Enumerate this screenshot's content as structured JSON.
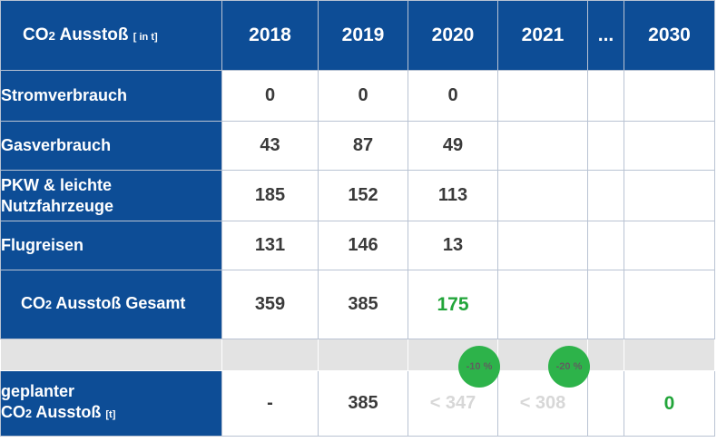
{
  "chart_data": {
    "type": "table",
    "header": {
      "label_main": "CO",
      "label_sub": "2",
      "label_rest": " Ausstoß",
      "unit": "[ in t]",
      "years": [
        "2018",
        "2019",
        "2020",
        "2021",
        "...",
        "2030"
      ]
    },
    "rows": [
      {
        "label": "Stromverbrauch",
        "values": [
          "0",
          "0",
          "0",
          "",
          "",
          ""
        ]
      },
      {
        "label": "Gasverbrauch",
        "values": [
          "43",
          "87",
          "49",
          "",
          "",
          ""
        ]
      },
      {
        "label": "PKW & leichte Nutzfahrzeuge",
        "values": [
          "185",
          "152",
          "113",
          "",
          "",
          ""
        ]
      },
      {
        "label": "Flugreisen",
        "values": [
          "131",
          "146",
          "13",
          "",
          "",
          ""
        ]
      }
    ],
    "total": {
      "label_main": "CO",
      "label_sub": "2",
      "label_rest": " Ausstoß Gesamt",
      "values": [
        "359",
        "385",
        "175",
        "",
        "",
        ""
      ]
    },
    "planned": {
      "label_line1": "geplanter",
      "label_main": "CO",
      "label_sub": "2",
      "label_rest": " Ausstoß",
      "unit": "[t]",
      "values": [
        "-",
        "385",
        "< 347",
        "< 308",
        "",
        "0"
      ]
    },
    "reduction_badges": [
      "-10 %",
      "-20 %"
    ],
    "colors": {
      "header_bg": "#0d4d96",
      "header_text": "#ffffff",
      "value_text": "#3a3a3a",
      "highlight": "#22a53a",
      "muted_text": "#d7d7d7",
      "separator": "#e3e3e3"
    }
  }
}
